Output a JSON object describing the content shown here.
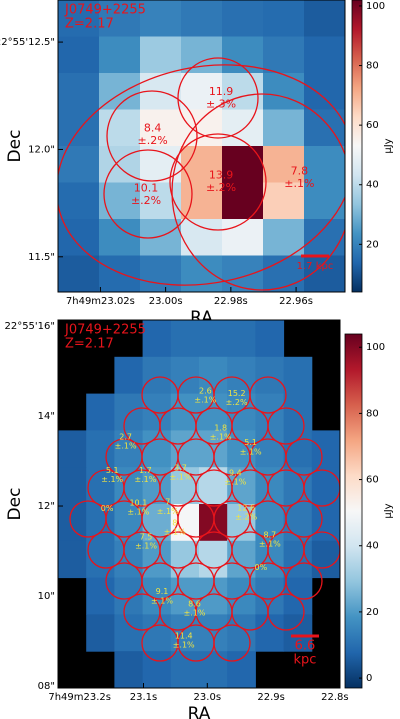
{
  "chart_data": [
    {
      "type": "heatmap",
      "label_lines": [
        "J0749+2255",
        "Z=2.17"
      ],
      "xlabel": "RA",
      "ylabel": "Dec",
      "colorbar_label": "μJy",
      "xlim": [
        23.033,
        22.945
      ],
      "ylim": [
        11.336,
        12.696
      ],
      "xticks": [
        {
          "value": 23.02,
          "label": "7h49m23.02s"
        },
        {
          "value": 23.0,
          "label": "23.00s"
        },
        {
          "value": 22.98,
          "label": "22.98s"
        },
        {
          "value": 22.96,
          "label": "22.96s"
        }
      ],
      "yticks": [
        {
          "value": 12.5,
          "label": "22°55'12.5\""
        },
        {
          "value": 12.0,
          "label": "12.0\""
        },
        {
          "value": 11.5,
          "label": "11.5\""
        }
      ],
      "zlim": [
        4,
        102
      ],
      "zticks": [
        20,
        40,
        60,
        80,
        100
      ],
      "colormap": [
        "#053061",
        "#2166ac",
        "#4393c3",
        "#92c5de",
        "#d1e5f0",
        "#f7f7f7",
        "#fddbc7",
        "#f4a582",
        "#d6604d",
        "#b2182b",
        "#67001f"
      ],
      "z": [
        [
          15,
          18,
          20,
          18,
          16,
          15,
          12
        ],
        [
          14,
          22,
          35,
          30,
          22,
          18,
          14
        ],
        [
          16,
          30,
          45,
          50,
          40,
          22,
          14
        ],
        [
          16,
          40,
          55,
          55,
          48,
          30,
          16
        ],
        [
          18,
          38,
          48,
          70,
          102,
          70,
          22
        ],
        [
          15,
          30,
          40,
          70,
          102,
          65,
          22
        ],
        [
          14,
          22,
          30,
          45,
          50,
          30,
          16
        ],
        [
          12,
          15,
          18,
          22,
          20,
          16,
          12
        ]
      ],
      "regions": [
        {
          "x": 22.983,
          "y": 12.24,
          "value": 11.9,
          "error": "±.3%"
        },
        {
          "x": 23.004,
          "y": 12.07,
          "value": 8.4,
          "error": "±.2%"
        },
        {
          "x": 22.983,
          "y": 11.85,
          "value": 13.9,
          "error": "±.2%"
        },
        {
          "x": 23.006,
          "y": 11.79,
          "value": 10.1,
          "error": "±.2%"
        },
        {
          "x": 22.959,
          "y": 11.87,
          "value": 7.8,
          "error": "±.1%"
        }
      ],
      "scale_bar": [
        "1.7 kpc"
      ]
    },
    {
      "type": "heatmap",
      "label_lines": [
        "J0749+2255",
        "Z=2.17"
      ],
      "xlabel": "RA",
      "ylabel": "Dec",
      "colorbar_label": "μJy",
      "xlim": [
        23.234,
        22.792
      ],
      "ylim": [
        7.96,
        16.13
      ],
      "xticks": [
        {
          "value": 23.2,
          "label": "7h49m23.2s"
        },
        {
          "value": 23.1,
          "label": "23.1s"
        },
        {
          "value": 23.0,
          "label": "23.0s"
        },
        {
          "value": 22.9,
          "label": "22.9s"
        },
        {
          "value": 22.8,
          "label": "22.8s"
        }
      ],
      "yticks": [
        {
          "value": 16,
          "label": "22°55'16\""
        },
        {
          "value": 14,
          "label": "14\""
        },
        {
          "value": 12,
          "label": "12\""
        },
        {
          "value": 10,
          "label": "10\""
        },
        {
          "value": 8,
          "label": "08\""
        }
      ],
      "zlim": [
        -3,
        104
      ],
      "zticks": [
        0,
        20,
        40,
        60,
        80,
        100
      ],
      "colormap": [
        "#053061",
        "#2166ac",
        "#4393c3",
        "#92c5de",
        "#d1e5f0",
        "#f7f7f7",
        "#fddbc7",
        "#f4a582",
        "#d6604d",
        "#b2182b",
        "#67001f"
      ],
      "z": [
        [
          null,
          null,
          null,
          8,
          10,
          10,
          10,
          8,
          null,
          null
        ],
        [
          null,
          null,
          8,
          12,
          14,
          16,
          14,
          12,
          10,
          null
        ],
        [
          null,
          8,
          12,
          14,
          18,
          18,
          16,
          14,
          10,
          null
        ],
        [
          6,
          10,
          14,
          18,
          22,
          22,
          18,
          14,
          10,
          8
        ],
        [
          6,
          10,
          16,
          20,
          30,
          35,
          22,
          16,
          12,
          8
        ],
        [
          6,
          10,
          16,
          24,
          50,
          100,
          30,
          16,
          12,
          8
        ],
        [
          6,
          10,
          14,
          20,
          30,
          35,
          22,
          16,
          10,
          6
        ],
        [
          null,
          8,
          12,
          16,
          20,
          20,
          16,
          12,
          8,
          null
        ],
        [
          null,
          6,
          10,
          12,
          14,
          14,
          12,
          8,
          6,
          null
        ],
        [
          null,
          null,
          6,
          8,
          10,
          10,
          8,
          null,
          null,
          null
        ]
      ],
      "regions": [
        {
          "x": 23.003,
          "y": 14.46,
          "value": 2.6,
          "error": "±.1%"
        },
        {
          "x": 22.954,
          "y": 14.4,
          "value": 15.2,
          "error": "±.2%"
        },
        {
          "x": 22.979,
          "y": 13.64,
          "value": 1.8,
          "error": "±.1%"
        },
        {
          "x": 23.128,
          "y": 13.44,
          "value": 2.7,
          "error": "±.1%"
        },
        {
          "x": 22.932,
          "y": 13.31,
          "value": 5.1,
          "error": "±.1%"
        },
        {
          "x": 23.149,
          "y": 12.69,
          "value": 5.1,
          "error": "±.1%"
        },
        {
          "x": 23.097,
          "y": 12.69,
          "value": 1.7,
          "error": "±.1%"
        },
        {
          "x": 23.042,
          "y": 12.75,
          "value": 3.7,
          "error": "±.1%"
        },
        {
          "x": 22.956,
          "y": 12.64,
          "value": 9.4,
          "error": "±.1%"
        },
        {
          "x": 23.108,
          "y": 11.97,
          "value": 10.1,
          "error": "±.1%"
        },
        {
          "x": 23.062,
          "y": 11.99,
          "value": 7.0,
          "error": "±.1%"
        },
        {
          "x": 23.157,
          "y": 11.95,
          "value": 0,
          "value_label": "0%"
        },
        {
          "x": 22.939,
          "y": 11.86,
          "value": 12.6,
          "error": "±.2%"
        },
        {
          "x": 23.051,
          "y": 11.53,
          "value": 8.0,
          "error": "±.1%"
        },
        {
          "x": 23.096,
          "y": 11.22,
          "value": 7.5,
          "error": "±.1%"
        },
        {
          "x": 22.902,
          "y": 11.26,
          "value": 8.7,
          "error": "±.1%"
        },
        {
          "x": 22.916,
          "y": 10.64,
          "value": 0,
          "value_label": "0%"
        },
        {
          "x": 23.071,
          "y": 10.0,
          "value": 9.1,
          "error": "±.1%"
        },
        {
          "x": 23.02,
          "y": 9.73,
          "value": 8.6,
          "error": "±.1%"
        },
        {
          "x": 23.037,
          "y": 9.02,
          "value": 11.4,
          "error": "±.1%"
        }
      ],
      "scale_bar": [
        "6.6",
        "kpc"
      ]
    }
  ]
}
